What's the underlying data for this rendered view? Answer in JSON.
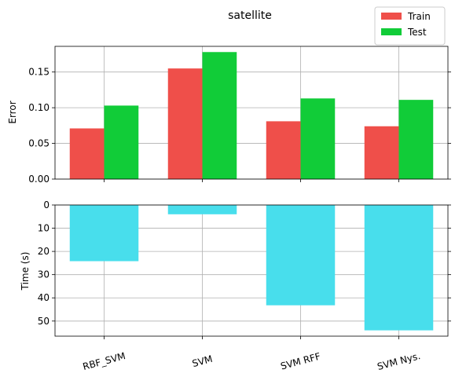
{
  "chart_data": [
    {
      "type": "bar",
      "title": "satellite",
      "ylabel": "Error",
      "categories": [
        "RBF_SVM",
        "SVM",
        "SVM RFF",
        "SVM Nys."
      ],
      "series": [
        {
          "name": "Train",
          "values": [
            0.071,
            0.155,
            0.081,
            0.074
          ]
        },
        {
          "name": "Test",
          "values": [
            0.103,
            0.178,
            0.113,
            0.111
          ]
        }
      ],
      "ylim": [
        0,
        0.186
      ],
      "yticks": [
        "0.00",
        "0.05",
        "0.10",
        "0.15"
      ],
      "ytick_values": [
        0,
        0.05,
        0.1,
        0.15
      ],
      "grid": true,
      "legend_position": "top-right",
      "colors": {
        "Train": "#ef4f4a",
        "Test": "#11cc38"
      }
    },
    {
      "type": "bar",
      "ylabel": "Time (s)",
      "categories": [
        "RBF_SVM",
        "SVM",
        "SVM RFF",
        "SVM Nys."
      ],
      "series": [
        {
          "values": [
            24.2,
            4.0,
            43.2,
            54.0
          ]
        }
      ],
      "ylim": [
        0,
        56.5
      ],
      "inverted": true,
      "yticks": [
        "0",
        "10",
        "20",
        "30",
        "40",
        "50"
      ],
      "ytick_values": [
        0,
        10,
        20,
        30,
        40,
        50
      ],
      "grid": true,
      "colors": {
        "bar": "#48deec"
      }
    }
  ]
}
